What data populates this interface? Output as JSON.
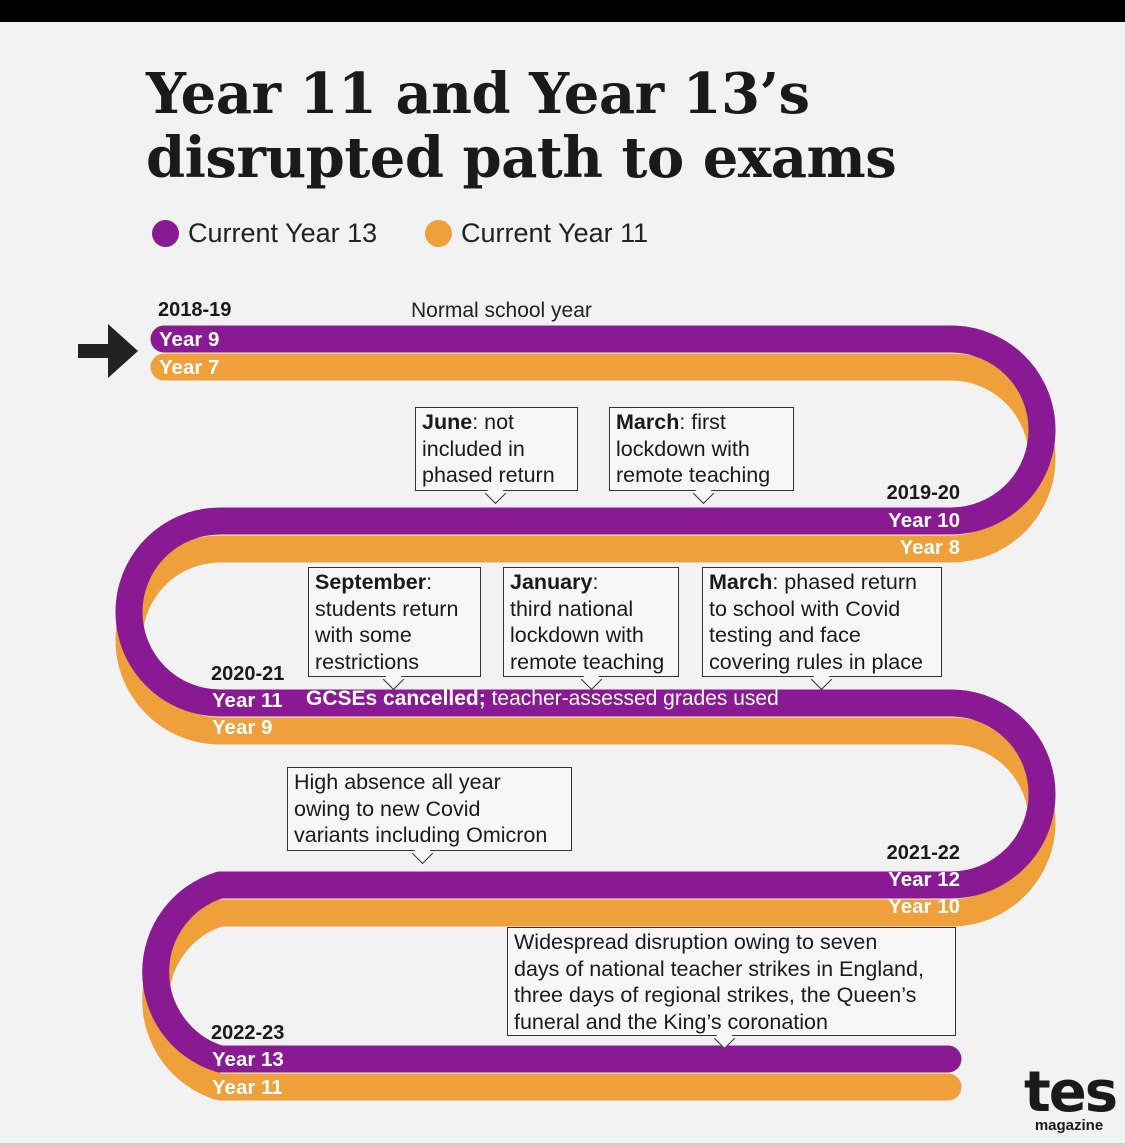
{
  "title_line1": "Year 11 and Year 13’s",
  "title_line2": "disrupted path to exams",
  "legend": [
    {
      "label": "Current Year 13",
      "color": "#8a1a94"
    },
    {
      "label": "Current Year 11",
      "color": "#f0a03a"
    }
  ],
  "colors": {
    "purple": "#8a1a94",
    "orange": "#f0a03a",
    "arrow": "#222222"
  },
  "years": [
    {
      "label": "2018-19",
      "purple": "Year 9",
      "orange": "Year 7"
    },
    {
      "label": "2019-20",
      "purple": "Year 10",
      "orange": "Year 8"
    },
    {
      "label": "2020-21",
      "purple": "Year 11",
      "orange": "Year 9"
    },
    {
      "label": "2021-22",
      "purple": "Year 12",
      "orange": "Year 10"
    },
    {
      "label": "2022-23",
      "purple": "Year 13",
      "orange": "Year 11"
    }
  ],
  "normal_year_note": "Normal school year",
  "gcse_note": {
    "bold": "GCSEs cancelled;",
    "rest": " teacher-assessed grades used"
  },
  "callouts": {
    "june": {
      "bold": "June",
      "rest1": ": not",
      "line2": "included in",
      "line3": "phased return"
    },
    "march1": {
      "bold": "March",
      "rest1": ": first",
      "line2": "lockdown with",
      "line3": "remote teaching"
    },
    "september": {
      "bold": "September",
      "rest1": ":",
      "line2": "students return",
      "line3": "with some",
      "line4": "restrictions"
    },
    "january": {
      "bold": "January",
      "rest1": ":",
      "line2": "third national",
      "line3": "lockdown with",
      "line4": "remote teaching"
    },
    "march2": {
      "bold": "March",
      "rest1": ": phased return",
      "line2": "to school with Covid",
      "line3": "testing and face",
      "line4": "covering rules in place"
    },
    "absence": {
      "line1": "High absence all year",
      "line2": "owing to new Covid",
      "line3": "variants including Omicron"
    },
    "strikes": {
      "line1": "Widespread disruption owing to seven",
      "line2": "days of national teacher strikes in England,",
      "line3": "three days of regional strikes, the Queen’s",
      "line4": "funeral and the King’s coronation"
    }
  },
  "logo": {
    "main": "tes",
    "sub": "magazine"
  }
}
